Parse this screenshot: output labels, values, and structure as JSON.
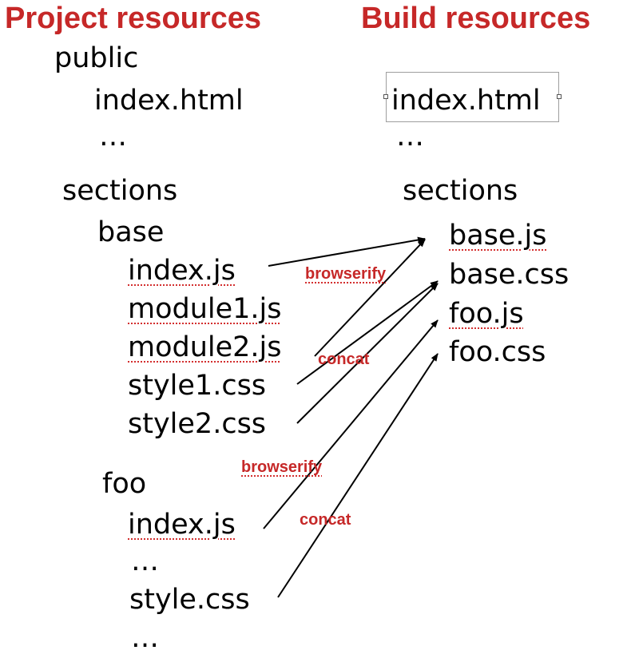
{
  "headings": {
    "project": "Project resources",
    "build": "Build resources"
  },
  "project": {
    "public_folder": "public",
    "public_index": "index.html",
    "public_more": "…",
    "sections_folder": "sections",
    "base_folder": "base",
    "base_index_js": "index.js",
    "base_module1_js": "module1.js",
    "base_module2_js": "module2.js",
    "base_style1_css": "style1.css",
    "base_style2_css": "style2.css",
    "foo_folder": "foo",
    "foo_index_js": "index.js",
    "foo_more": "…",
    "foo_style_css": "style.css",
    "foo_more_2": "…"
  },
  "build": {
    "index_html": "index.html",
    "more": "…",
    "sections_folder": "sections",
    "base_js": "base.js",
    "base_css": "base.css",
    "foo_js": "foo.js",
    "foo_css": "foo.css"
  },
  "edge_labels": {
    "base_browserify": "browserify",
    "base_concat": "concat",
    "foo_browserify": "browserify",
    "foo_concat": "concat"
  },
  "colors": {
    "heading": "#c62828",
    "edge_label": "#c62828",
    "spellcheck_underline": "#d32f2f",
    "text": "#000000",
    "arrow": "#000000"
  }
}
